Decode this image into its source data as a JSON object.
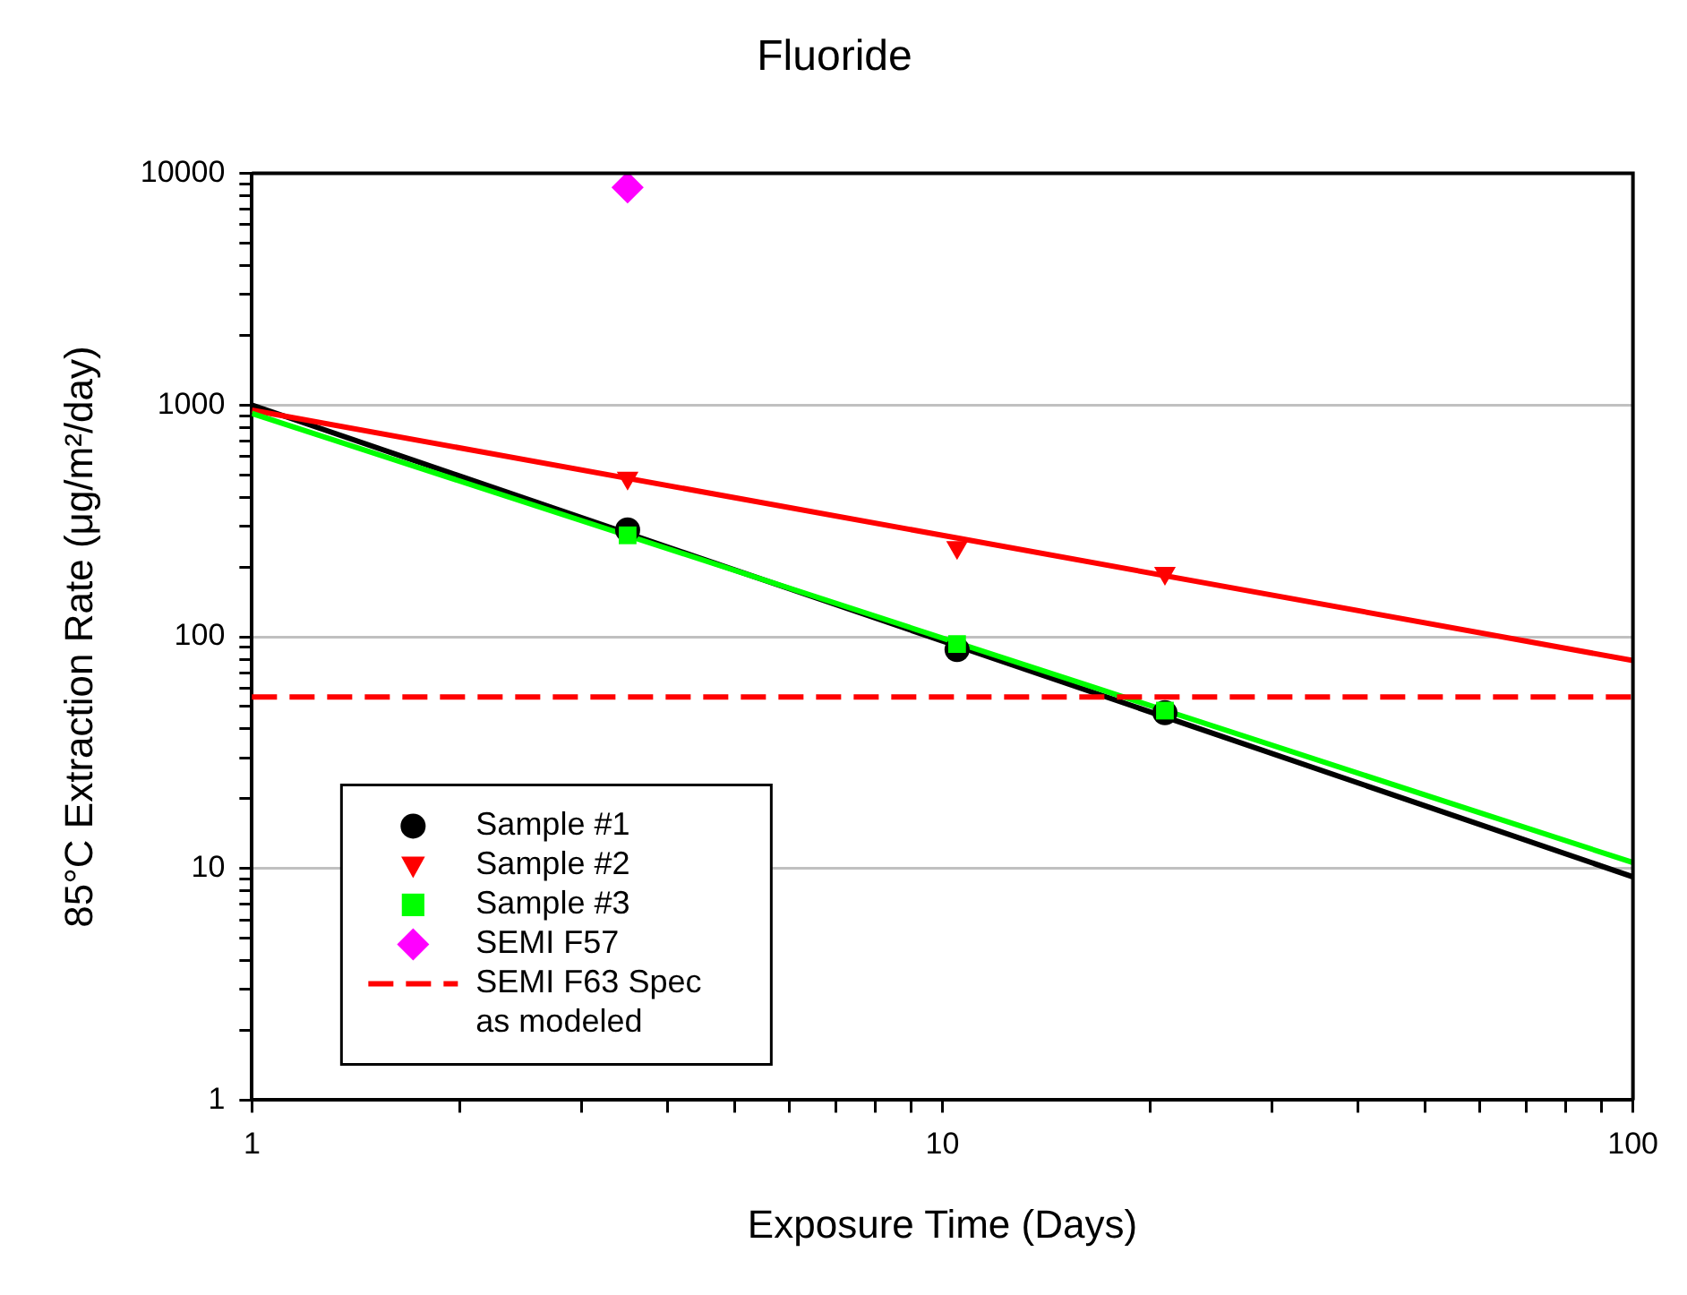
{
  "chart_data": {
    "type": "scatter",
    "title": "Fluoride",
    "xlabel": "Exposure Time (Days)",
    "ylabel": "85°C Extraction Rate (μg/m²/day)",
    "log": "xy",
    "grid": "y",
    "legend": "bottom left",
    "xlim": [
      1,
      100
    ],
    "ylim": [
      1,
      10000
    ],
    "xticks": [
      1,
      {
        "value": 2,
        "label": null
      },
      {
        "value": 3,
        "label": null
      },
      {
        "value": 4,
        "label": null
      },
      {
        "value": 5,
        "label": null
      },
      {
        "value": 6,
        "label": null
      },
      {
        "value": 7,
        "label": null
      },
      {
        "value": 8,
        "label": null
      },
      {
        "value": 9,
        "label": null
      },
      10,
      {
        "value": 20,
        "label": null
      },
      {
        "value": 30,
        "label": null
      },
      {
        "value": 40,
        "label": null
      },
      {
        "value": 50,
        "label": null
      },
      {
        "value": 60,
        "label": null
      },
      {
        "value": 70,
        "label": null
      },
      {
        "value": 80,
        "label": null
      },
      {
        "value": 90,
        "label": null
      },
      100
    ],
    "yticks": [
      1,
      {
        "value": 2,
        "label": null
      },
      {
        "value": 3,
        "label": null
      },
      {
        "value": 4,
        "label": null
      },
      {
        "value": 5,
        "label": null
      },
      {
        "value": 6,
        "label": null
      },
      {
        "value": 7,
        "label": null
      },
      {
        "value": 8,
        "label": null
      },
      {
        "value": 9,
        "label": null
      },
      10,
      {
        "value": 20,
        "label": null
      },
      {
        "value": 30,
        "label": null
      },
      {
        "value": 40,
        "label": null
      },
      {
        "value": 50,
        "label": null
      },
      {
        "value": 60,
        "label": null
      },
      {
        "value": 70,
        "label": null
      },
      {
        "value": 80,
        "label": null
      },
      {
        "value": 90,
        "label": null
      },
      100,
      {
        "value": 200,
        "label": null
      },
      {
        "value": 300,
        "label": null
      },
      {
        "value": 400,
        "label": null
      },
      {
        "value": 500,
        "label": null
      },
      {
        "value": 600,
        "label": null
      },
      {
        "value": 700,
        "label": null
      },
      {
        "value": 800,
        "label": null
      },
      {
        "value": 900,
        "label": null
      },
      1000,
      {
        "value": 2000,
        "label": null
      },
      {
        "value": 3000,
        "label": null
      },
      {
        "value": 4000,
        "label": null
      },
      {
        "value": 5000,
        "label": null
      },
      {
        "value": 6000,
        "label": null
      },
      {
        "value": 7000,
        "label": null
      },
      {
        "value": 8000,
        "label": null
      },
      {
        "value": 9000,
        "label": null
      },
      10000
    ],
    "series": [
      {
        "type": "line",
        "color": "#000000",
        "x": [
          1,
          100
        ],
        "values": [
          1000,
          9.2
        ],
        "marker": "none"
      },
      {
        "type": "line",
        "color": "#ff0000",
        "x": [
          1,
          100
        ],
        "values": [
          950,
          79
        ],
        "marker": "none"
      },
      {
        "type": "line",
        "color": "#00ff00",
        "x": [
          1,
          100
        ],
        "values": [
          920,
          10.6
        ],
        "marker": "none"
      },
      {
        "name": "Sample #1",
        "type": "scatter",
        "color": "#000000",
        "marker": "circle",
        "x": [
          3.5,
          10.5,
          21
        ],
        "values": [
          289,
          88,
          47
        ]
      },
      {
        "name": "Sample #2",
        "type": "scatter",
        "color": "#ff0000",
        "marker": "triangle",
        "x": [
          3.5,
          10.5,
          21
        ],
        "values": [
          484,
          243,
          188
        ]
      },
      {
        "name": "Sample #3",
        "type": "scatter",
        "color": "#00ff00",
        "marker": "square",
        "x": [
          3.5,
          10.5,
          21
        ],
        "values": [
          274,
          93,
          48
        ]
      },
      {
        "name": "SEMI F57",
        "type": "scatter",
        "color": "#ff00ff",
        "marker": "diamond",
        "x": [
          3.5
        ],
        "values": [
          8700
        ]
      }
    ],
    "ref_lines": [
      {
        "axis": "y",
        "value": 55,
        "label": "SEMI F63 Spec as modeled",
        "color": "#ff0000",
        "line_style": "dashed"
      }
    ]
  }
}
